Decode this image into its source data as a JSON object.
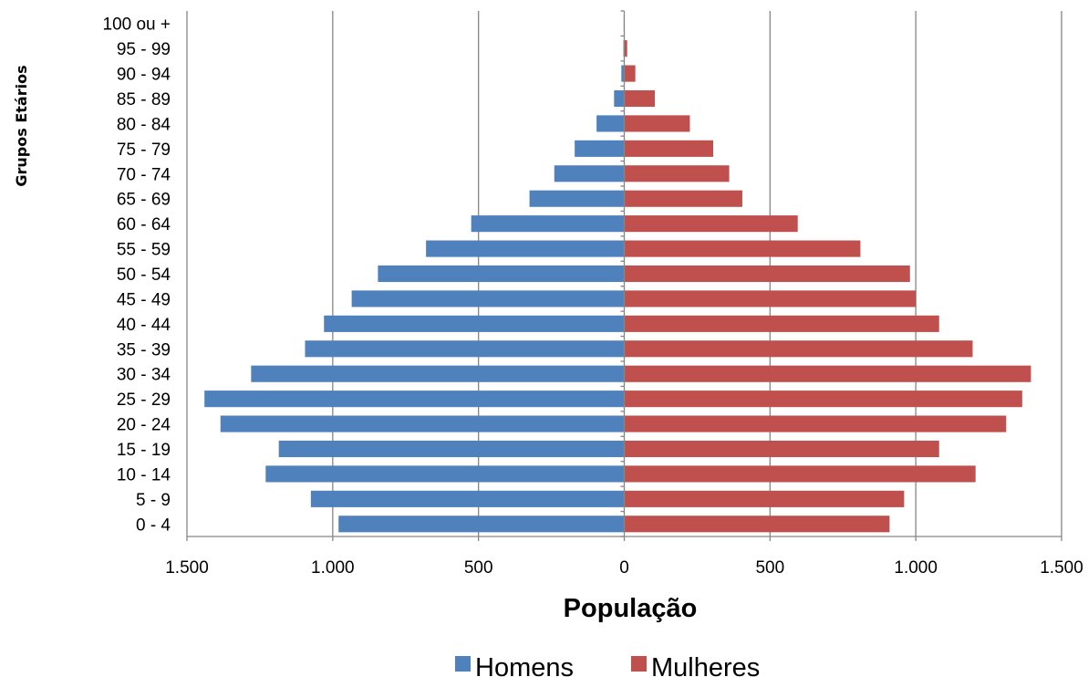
{
  "chart_data": {
    "type": "bar",
    "orientation": "horizontal",
    "layout": "population-pyramid",
    "categories": [
      "0 - 4",
      "5 - 9",
      "10 - 14",
      "15 - 19",
      "20 - 24",
      "25 - 29",
      "30 - 34",
      "35 - 39",
      "40 - 44",
      "45 - 49",
      "50 - 54",
      "55 - 59",
      "60 - 64",
      "65 - 69",
      "70 - 74",
      "75 - 79",
      "80 - 84",
      "85 - 89",
      "90 - 94",
      "95 - 99",
      "100 ou +"
    ],
    "series": [
      {
        "name": "Homens",
        "color": "#4F81BD",
        "side": "left",
        "values": [
          980,
          1075,
          1230,
          1185,
          1385,
          1440,
          1280,
          1095,
          1030,
          935,
          845,
          680,
          525,
          325,
          240,
          170,
          95,
          35,
          10,
          3,
          2
        ]
      },
      {
        "name": "Mulheres",
        "color": "#C0504D",
        "side": "right",
        "values": [
          910,
          960,
          1205,
          1080,
          1310,
          1365,
          1395,
          1195,
          1080,
          1000,
          980,
          810,
          595,
          405,
          360,
          305,
          225,
          105,
          38,
          10,
          1
        ]
      }
    ],
    "xlabel": "População",
    "ylabel": "Grupos Etários",
    "xlim": [
      -1500,
      1500
    ],
    "xticks": [
      {
        "value": -1500,
        "label": "1.500"
      },
      {
        "value": -1000,
        "label": "1.000"
      },
      {
        "value": -500,
        "label": "500"
      },
      {
        "value": 0,
        "label": "0"
      },
      {
        "value": 500,
        "label": "500"
      },
      {
        "value": 1000,
        "label": "1.000"
      },
      {
        "value": 1500,
        "label": "1.500"
      }
    ],
    "grid": "vertical",
    "grid_color": "#868686",
    "legend": {
      "position": "bottom",
      "entries": [
        "Homens",
        "Mulheres"
      ]
    }
  }
}
